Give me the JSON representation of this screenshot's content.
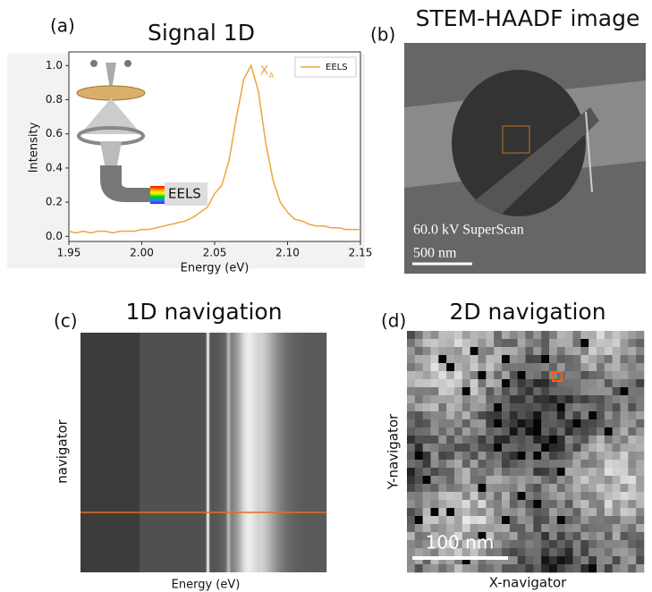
{
  "chart_data": {
    "type": "line",
    "panel_label": "(a)",
    "title": "Signal 1D",
    "x_label": "Energy (eV)",
    "y_label": "Intensity",
    "x": [
      1.95,
      1.955,
      1.96,
      1.965,
      1.97,
      1.975,
      1.98,
      1.985,
      1.99,
      1.995,
      2.0,
      2.005,
      2.01,
      2.015,
      2.02,
      2.025,
      2.03,
      2.035,
      2.04,
      2.045,
      2.05,
      2.055,
      2.06,
      2.065,
      2.07,
      2.075,
      2.08,
      2.085,
      2.09,
      2.095,
      2.1,
      2.105,
      2.11,
      2.115,
      2.12,
      2.125,
      2.13,
      2.135,
      2.14,
      2.145,
      2.15
    ],
    "series": [
      {
        "name": "EELS",
        "color": "#f0a43a",
        "values": [
          0.03,
          0.02,
          0.03,
          0.02,
          0.03,
          0.03,
          0.02,
          0.03,
          0.03,
          0.03,
          0.04,
          0.04,
          0.05,
          0.06,
          0.07,
          0.08,
          0.09,
          0.11,
          0.14,
          0.17,
          0.25,
          0.3,
          0.45,
          0.7,
          0.92,
          1.0,
          0.85,
          0.55,
          0.33,
          0.2,
          0.14,
          0.1,
          0.09,
          0.07,
          0.06,
          0.06,
          0.05,
          0.05,
          0.04,
          0.04,
          0.04
        ]
      }
    ],
    "xlim": [
      1.95,
      2.15
    ],
    "ylim": [
      -0.03,
      1.08
    ],
    "xticks": [
      {
        "value": 1.95,
        "label": "1.95"
      },
      {
        "value": 2.0,
        "label": "2.00"
      },
      {
        "value": 2.05,
        "label": "2.05"
      },
      {
        "value": 2.1,
        "label": "2.10"
      },
      {
        "value": 2.15,
        "label": "2.15"
      }
    ],
    "yticks": [
      {
        "value": 0,
        "label": "0.0"
      },
      {
        "value": 0.2,
        "label": "0.2"
      },
      {
        "value": 0.4,
        "label": "0.4"
      },
      {
        "value": 0.6,
        "label": "0.6"
      },
      {
        "value": 0.8,
        "label": "0.8"
      },
      {
        "value": 1.0,
        "label": "1.0"
      }
    ],
    "legend": "upper right",
    "annotation": {
      "text": "X",
      "subscript": "A"
    },
    "diagram_label": "EELS"
  },
  "panels": [
    {
      "label": "(b)",
      "title": "STEM-HAADF image",
      "caption": "60.0 kV SuperScan",
      "scale_bar": "500 nm"
    },
    {
      "label": "(c)",
      "title": "1D navigation",
      "x_label": "Energy (eV)",
      "y_label": "navigator"
    },
    {
      "label": "(d)",
      "title": "2D navigation",
      "x_label": "X-navigator",
      "y_label": "Y-navigator",
      "scale_bar": "100 nm"
    }
  ]
}
